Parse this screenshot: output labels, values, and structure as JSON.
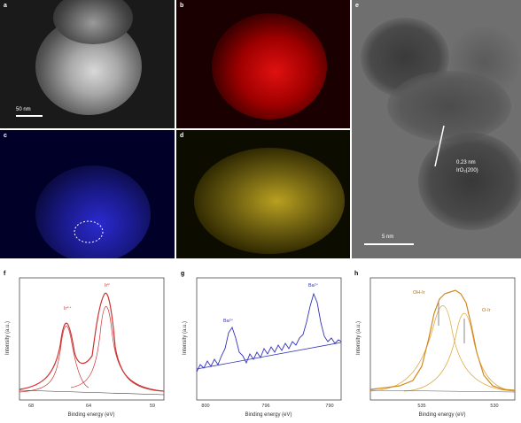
{
  "panels": {
    "a": {
      "label": "a",
      "scalebar": "50 nm"
    },
    "b": {
      "label": "b"
    },
    "c": {
      "label": "c"
    },
    "d": {
      "label": "d"
    },
    "e": {
      "label": "e",
      "annotation_line1": "0.23 nm",
      "annotation_line2": "IrO₂(200)",
      "scalebar": "5 nm"
    }
  },
  "chart_data": [
    {
      "panel": "f",
      "type": "line",
      "xlabel": "Binding energy (eV)",
      "ylabel": "Intensity (a.u.)",
      "xticks": [
        "68",
        "64",
        "59"
      ],
      "peak_labels": [
        "Ir⁴⁺",
        "Ir⁰"
      ],
      "color": "#cc3333"
    },
    {
      "panel": "g",
      "type": "line",
      "xlabel": "Binding energy (eV)",
      "ylabel": "Intensity (a.u.)",
      "xticks": [
        "800",
        "796",
        "790"
      ],
      "peak_labels": [
        "Ba²⁺",
        "Ba²⁺"
      ],
      "color": "#3333bb"
    },
    {
      "panel": "h",
      "type": "line",
      "xlabel": "Binding energy (eV)",
      "ylabel": "Intensity (a.u.)",
      "xticks": [
        "535",
        "530"
      ],
      "peak_labels": [
        "OH-Ir",
        "O-Ir"
      ],
      "color": "#e0a030"
    }
  ]
}
